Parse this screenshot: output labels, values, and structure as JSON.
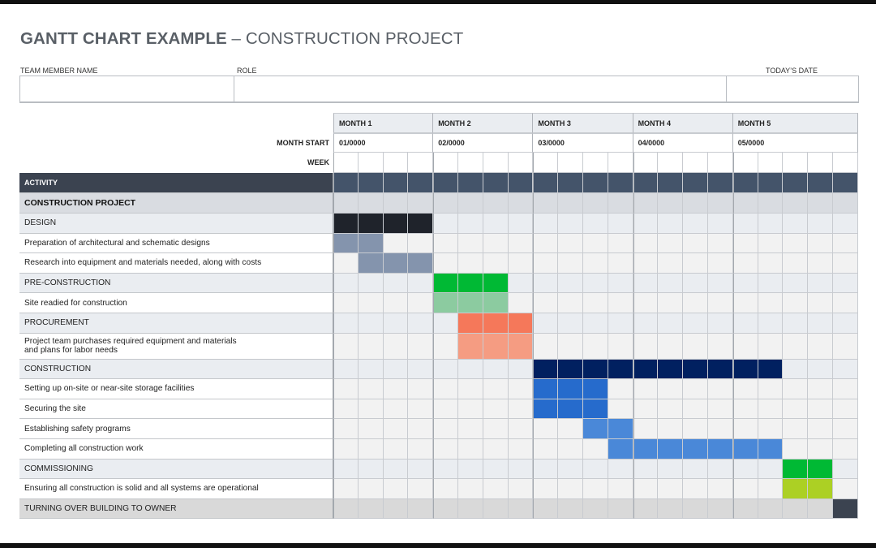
{
  "header": {
    "title_bold": "GANTT CHART EXAMPLE",
    "title_light": " – CONSTRUCTION PROJECT",
    "team_member_label": "TEAM MEMBER NAME",
    "role_label": "ROLE",
    "date_label": "TODAY’S DATE",
    "team_member_value": "",
    "role_value": "",
    "date_value": ""
  },
  "timeline": {
    "month_start_label": "MONTH START",
    "week_label": "WEEK",
    "months": [
      {
        "label": "MONTH 1",
        "start": "01/0000",
        "weeks": 4
      },
      {
        "label": "MONTH 2",
        "start": "02/0000",
        "weeks": 4
      },
      {
        "label": "MONTH 3",
        "start": "03/0000",
        "weeks": 4
      },
      {
        "label": "MONTH 4",
        "start": "04/0000",
        "weeks": 4
      },
      {
        "label": "MONTH 5",
        "start": "05/0000",
        "weeks": 5
      }
    ]
  },
  "colors": {
    "activity_header": "#3b4350",
    "activity_header_cells": "#44546a",
    "project_row": "#d9dce1",
    "phase_row": "#eaedf1",
    "task_row": "#f2f2f2",
    "final_row": "#d9d9d9"
  },
  "chart_data": {
    "type": "gantt",
    "title": "GANTT CHART EXAMPLE – CONSTRUCTION PROJECT",
    "x_units": "weeks (1-21)",
    "activity_header": "ACTIVITY",
    "project": "CONSTRUCTION PROJECT",
    "rows": [
      {
        "label": "DESIGN",
        "kind": "phase",
        "start": 1,
        "end": 4,
        "color": "#1f232b"
      },
      {
        "label": "Preparation of architectural and schematic designs",
        "kind": "task",
        "start": 1,
        "end": 2,
        "color": "#8494ad"
      },
      {
        "label": "Research into equipment and materials needed, along with costs",
        "kind": "task",
        "start": 2,
        "end": 4,
        "color": "#8494ad"
      },
      {
        "label": "PRE-CONSTRUCTION",
        "kind": "phase",
        "start": 5,
        "end": 7,
        "color": "#00b934"
      },
      {
        "label": "Site readied for construction",
        "kind": "task",
        "start": 5,
        "end": 7,
        "color": "#8ccba0"
      },
      {
        "label": "PROCUREMENT",
        "kind": "phase",
        "start": 6,
        "end": 8,
        "color": "#f5785a"
      },
      {
        "label": "Project team purchases required equipment and materials\nand plans for labor needs",
        "kind": "task",
        "start": 6,
        "end": 8,
        "color": "#f59c82",
        "tall": true
      },
      {
        "label": "CONSTRUCTION",
        "kind": "phase",
        "start": 9,
        "end": 18,
        "color": "#012060"
      },
      {
        "label": "Setting up on-site or near-site storage facilities",
        "kind": "task",
        "start": 9,
        "end": 11,
        "color": "#266bcc"
      },
      {
        "label": "Securing the site",
        "kind": "task",
        "start": 9,
        "end": 11,
        "color": "#266bcc"
      },
      {
        "label": "Establishing safety programs",
        "kind": "task",
        "start": 11,
        "end": 12,
        "color": "#4a88d8"
      },
      {
        "label": "Completing all construction work",
        "kind": "task",
        "start": 12,
        "end": 18,
        "color": "#4a88d8"
      },
      {
        "label": "COMMISSIONING",
        "kind": "phase",
        "start": 19,
        "end": 20,
        "color": "#00b934"
      },
      {
        "label": "Ensuring all construction is solid and all systems are operational",
        "kind": "task",
        "start": 19,
        "end": 20,
        "color": "#acd024"
      },
      {
        "label": "TURNING OVER BUILDING TO OWNER",
        "kind": "final",
        "start": 21,
        "end": 21,
        "color": "#3b4350"
      }
    ]
  }
}
